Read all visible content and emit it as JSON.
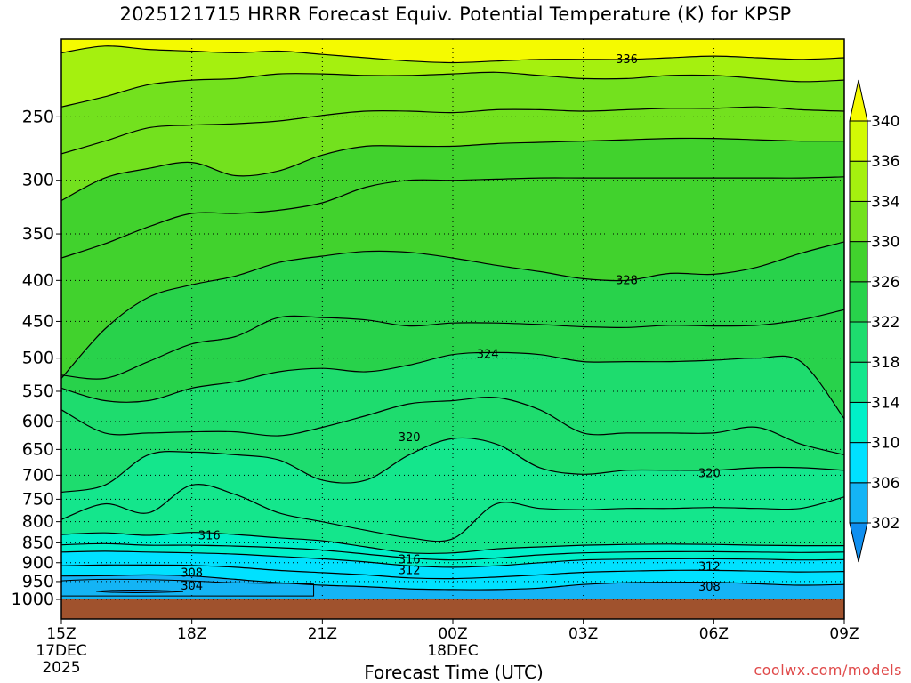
{
  "title": "2025121715 HRRR Forecast Equiv. Potential Temperature (K) for KPSP",
  "xlabel": "Forecast Time (UTC)",
  "credit": "coolwx.com/models",
  "colors": {
    "ground": "#a0522d",
    "levels": [
      "#0f8ff0",
      "#14b4f5",
      "#00e1ff",
      "#00f0c8",
      "#14e68c",
      "#1edc6e",
      "#28d24b",
      "#41d22d",
      "#73e11e",
      "#a5f00f",
      "#d2fa05",
      "#f5fa00"
    ]
  },
  "chart_data": {
    "type": "contour",
    "x_ticks": [
      "15Z",
      "18Z",
      "21Z",
      "00Z",
      "03Z",
      "06Z",
      "09Z"
    ],
    "x_ticks_sub": [
      [
        "17DEC",
        "2025"
      ],
      [],
      [],
      [
        "18DEC"
      ],
      [],
      [],
      []
    ],
    "x_hours": [
      0,
      3,
      6,
      9,
      12,
      15,
      18
    ],
    "y_ticks": [
      250,
      300,
      350,
      400,
      450,
      500,
      550,
      600,
      650,
      700,
      750,
      800,
      850,
      900,
      950,
      1000
    ],
    "y_range_hpa": [
      200,
      1000
    ],
    "y_scale": "log",
    "colorbar_ticks": [
      302,
      306,
      310,
      314,
      318,
      322,
      326,
      330,
      334,
      336,
      340
    ],
    "contour_labels": [
      {
        "text": "336",
        "hour": 13.0,
        "p": 212
      },
      {
        "text": "328",
        "hour": 13.0,
        "p": 400
      },
      {
        "text": "324",
        "hour": 9.8,
        "p": 495
      },
      {
        "text": "320",
        "hour": 8.0,
        "p": 628
      },
      {
        "text": "320",
        "hour": 14.9,
        "p": 697
      },
      {
        "text": "316",
        "hour": 3.4,
        "p": 833
      },
      {
        "text": "316",
        "hour": 8.0,
        "p": 893
      },
      {
        "text": "312",
        "hour": 8.0,
        "p": 920
      },
      {
        "text": "312",
        "hour": 14.9,
        "p": 911
      },
      {
        "text": "308",
        "hour": 3.0,
        "p": 927
      },
      {
        "text": "308",
        "hour": 14.9,
        "p": 965
      },
      {
        "text": "304",
        "hour": 3.0,
        "p": 962
      }
    ],
    "contours": [
      {
        "value": 336,
        "hours": [
          0,
          1,
          2,
          3,
          4,
          5,
          6,
          7,
          8,
          9,
          10,
          11,
          12,
          13,
          14,
          15,
          16,
          17,
          18
        ],
        "p": [
          208,
          204,
          206,
          207,
          208,
          207,
          209,
          211,
          213,
          214,
          213,
          212,
          212,
          212,
          211,
          210,
          211,
          212,
          211
        ]
      },
      {
        "value": 334,
        "hours": [
          0,
          1,
          2,
          3,
          4,
          5,
          6,
          7,
          8,
          9,
          10,
          11,
          12,
          13,
          14,
          15,
          16,
          17,
          18
        ],
        "p": [
          243,
          236,
          228,
          225,
          224,
          221,
          221,
          222,
          222,
          221,
          220,
          222,
          224,
          224,
          222,
          222,
          224,
          226,
          225
        ]
      },
      {
        "value": 332,
        "hours": [
          0,
          1,
          2,
          3,
          4,
          5,
          6,
          7,
          8,
          9,
          10,
          11,
          12,
          13,
          14,
          15,
          16,
          17,
          18
        ],
        "p": [
          278,
          268,
          258,
          256,
          255,
          253,
          249,
          246,
          246,
          247,
          245,
          245,
          246,
          245,
          244,
          244,
          243,
          245,
          246
        ]
      },
      {
        "value": 330,
        "hours": [
          0,
          1,
          2,
          3,
          4,
          5,
          6,
          7,
          8,
          9,
          10,
          11,
          12,
          13,
          14,
          15,
          16,
          17,
          18
        ],
        "p": [
          318,
          298,
          290,
          285,
          296,
          292,
          279,
          272,
          272,
          272,
          270,
          269,
          268,
          267,
          266,
          266,
          267,
          268,
          268
        ]
      },
      {
        "value": 328,
        "hours": [
          0,
          1,
          2,
          3,
          4,
          5,
          6,
          7,
          8,
          9,
          10,
          11,
          12,
          13,
          14,
          15,
          16,
          17,
          18
        ],
        "p": [
          375,
          360,
          343,
          330,
          330,
          327,
          320,
          306,
          300,
          300,
          299,
          298,
          298,
          298,
          298,
          298,
          298,
          298,
          297
        ]
      },
      {
        "value": 326,
        "hours": [
          0,
          1,
          2,
          3,
          4,
          5,
          6,
          7,
          8,
          9,
          10,
          11,
          12,
          13,
          14,
          15,
          16,
          17,
          18
        ],
        "p": [
          530,
          460,
          420,
          405,
          395,
          380,
          373,
          368,
          369,
          375,
          383,
          390,
          398,
          400,
          392,
          393,
          385,
          370,
          358
        ]
      },
      {
        "value": 324,
        "hours": [
          0,
          1,
          2,
          3,
          4,
          5,
          6,
          7,
          8,
          9,
          10,
          11,
          12,
          13,
          14,
          15,
          16,
          17,
          18
        ],
        "p": [
          525,
          530,
          505,
          480,
          470,
          445,
          445,
          448,
          456,
          452,
          452,
          454,
          457,
          458,
          455,
          456,
          455,
          448,
          435
        ]
      },
      {
        "value": 322,
        "hours": [
          0,
          1,
          2,
          3,
          4,
          5,
          6,
          7,
          8,
          9,
          10,
          11,
          12,
          13,
          14,
          15,
          16,
          17,
          18
        ],
        "p": [
          545,
          565,
          565,
          545,
          535,
          520,
          515,
          520,
          510,
          495,
          492,
          495,
          505,
          505,
          505,
          503,
          500,
          505,
          595
        ]
      },
      {
        "value": 320,
        "hours": [
          0,
          1,
          2,
          3,
          4,
          5,
          6,
          7,
          8,
          9,
          10,
          11,
          12,
          13,
          14,
          15,
          16,
          17,
          18
        ],
        "p": [
          580,
          620,
          620,
          618,
          618,
          625,
          610,
          590,
          570,
          565,
          560,
          580,
          620,
          620,
          620,
          620,
          610,
          640,
          660
        ]
      },
      {
        "value": 318,
        "hours": [
          0,
          1,
          2,
          3,
          4,
          5,
          6,
          7,
          8,
          9,
          10,
          11,
          12,
          13,
          14,
          15,
          16,
          17,
          18
        ],
        "p": [
          735,
          720,
          660,
          655,
          660,
          670,
          710,
          710,
          660,
          630,
          640,
          685,
          698,
          690,
          690,
          690,
          685,
          685,
          690
        ]
      },
      {
        "value": 316,
        "hours": [
          0,
          1,
          2,
          3,
          4,
          5,
          6,
          7,
          8,
          9,
          10,
          11,
          12,
          13,
          14,
          15,
          16,
          17,
          18
        ],
        "p": [
          795,
          760,
          780,
          720,
          740,
          780,
          800,
          820,
          838,
          840,
          760,
          770,
          773,
          770,
          770,
          768,
          770,
          770,
          745
        ]
      },
      {
        "value": 314,
        "hours": [
          0,
          1,
          2,
          3,
          4,
          5,
          6,
          7,
          8,
          9,
          10,
          11,
          12,
          13,
          14,
          15,
          16,
          17,
          18
        ],
        "p": [
          830,
          826,
          832,
          825,
          830,
          838,
          845,
          860,
          875,
          875,
          865,
          860,
          856,
          854,
          853,
          854,
          856,
          857,
          857
        ]
      },
      {
        "value": 312,
        "hours": [
          0,
          1,
          2,
          3,
          4,
          5,
          6,
          7,
          8,
          9,
          10,
          11,
          12,
          13,
          14,
          15,
          16,
          17,
          18
        ],
        "p": [
          855,
          852,
          856,
          856,
          858,
          862,
          868,
          878,
          888,
          893,
          888,
          880,
          875,
          873,
          872,
          872,
          873,
          874,
          873
        ]
      },
      {
        "value": 310,
        "hours": [
          0,
          1,
          2,
          3,
          4,
          5,
          6,
          7,
          8,
          9,
          10,
          11,
          12,
          13,
          14,
          15,
          16,
          17,
          18
        ],
        "p": [
          873,
          871,
          873,
          875,
          878,
          884,
          890,
          898,
          908,
          912,
          908,
          900,
          893,
          891,
          890,
          890,
          891,
          893,
          892
        ]
      },
      {
        "value": 308,
        "hours": [
          0,
          1,
          2,
          3,
          4,
          5,
          6,
          7,
          8,
          9,
          10,
          11,
          12,
          13,
          14,
          15,
          16,
          17,
          18
        ],
        "p": [
          908,
          906,
          906,
          907,
          912,
          920,
          926,
          932,
          940,
          942,
          938,
          932,
          925,
          922,
          920,
          920,
          922,
          924,
          923
        ]
      },
      {
        "value": 306,
        "hours": [
          0,
          1,
          2,
          3,
          4,
          5,
          6,
          7,
          8,
          9,
          10,
          11,
          12,
          13,
          14,
          15,
          16,
          17,
          18
        ],
        "p": [
          935,
          934,
          932,
          935,
          944,
          953,
          960,
          964,
          970,
          972,
          972,
          968,
          958,
          953,
          952,
          952,
          956,
          960,
          958
        ]
      }
    ]
  }
}
